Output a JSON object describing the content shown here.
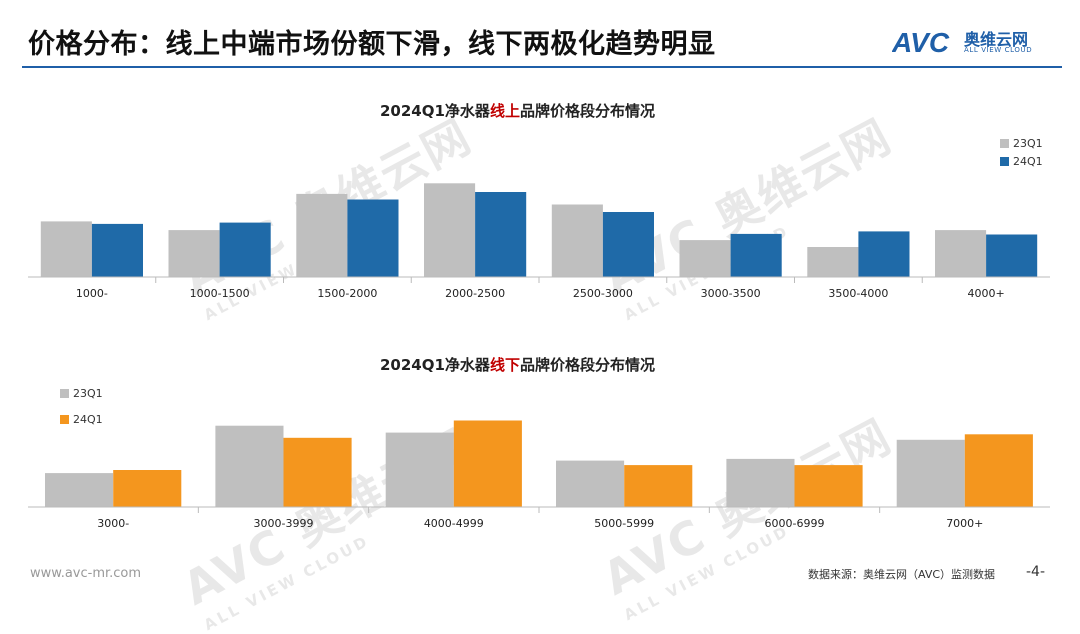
{
  "header": {
    "title": "价格分布：线上中端市场份额下滑，线下两极化趋势明显",
    "brand_cn": "奥维云网",
    "brand_en": "ALL VIEW CLOUD",
    "brand_logo": "AVC"
  },
  "watermark": {
    "main": "AVC 奥维云网",
    "sub": "ALL VIEW CLOUD"
  },
  "colors": {
    "accent": "#1f5fa8",
    "highlight": "#c00000",
    "gray": "#bfbfbf",
    "blue": "#1f6aa8",
    "orange": "#f4961e"
  },
  "chart_data": [
    {
      "type": "bar",
      "title_parts": [
        "2024Q1净水器",
        "线上",
        "品牌价格段分布情况"
      ],
      "categories": [
        "1000-",
        "1000-1500",
        "1500-2000",
        "2000-2500",
        "2500-3000",
        "3000-3500",
        "3500-4000",
        "4000+"
      ],
      "series": [
        {
          "name": "23Q1",
          "color": "#bfbfbf",
          "values": [
            8.9,
            7.5,
            13.3,
            15.0,
            11.6,
            5.9,
            4.8,
            7.5
          ]
        },
        {
          "name": "24Q1",
          "color": "#1f6aa8",
          "values": [
            8.5,
            8.7,
            12.4,
            13.6,
            10.4,
            6.9,
            7.3,
            6.8
          ]
        }
      ],
      "ylim": [
        0,
        16
      ],
      "legend_position": "top-right",
      "grid": false
    },
    {
      "type": "bar",
      "title_parts": [
        "2024Q1净水器",
        "线下",
        "品牌价格段分布情况"
      ],
      "categories": [
        "3000-",
        "3000-3999",
        "4000-4999",
        "5000-5999",
        "6000-6999",
        "7000+"
      ],
      "series": [
        {
          "name": "23Q1",
          "color": "#bfbfbf",
          "values": [
            9.8,
            23.5,
            21.5,
            13.4,
            13.9,
            19.4
          ]
        },
        {
          "name": "24Q1",
          "color": "#f4961e",
          "values": [
            10.7,
            20.0,
            25.0,
            12.1,
            12.1,
            21.0
          ]
        }
      ],
      "ylim": [
        0,
        26
      ],
      "legend_position": "top-left",
      "grid": false
    }
  ],
  "footer": {
    "url": "www.avc-mr.com",
    "source": "数据来源：奥维云网（AVC）监测数据",
    "page": "-4-"
  }
}
